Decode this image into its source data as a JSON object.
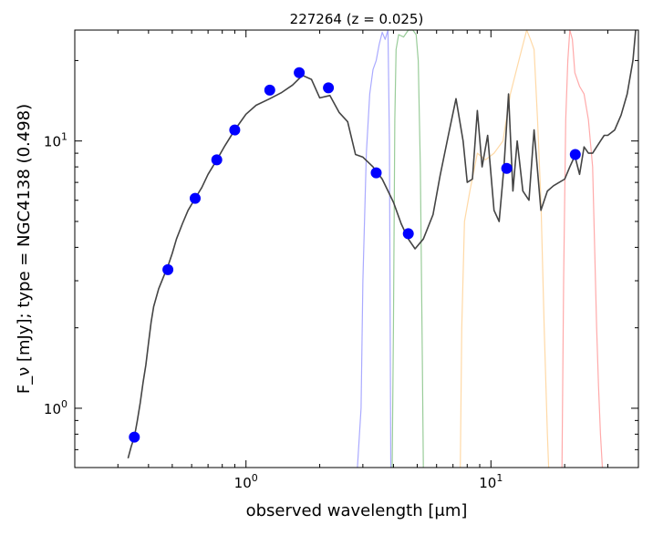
{
  "chart_data": {
    "type": "scatter",
    "title": "227264 (z = 0.025)",
    "xlabel": "observed wavelength [μm]",
    "ylabel": "F_ν [mJy];  type = NGC4138 (0.498)",
    "xscale": "log",
    "yscale": "log",
    "xlim": [
      0.2,
      40
    ],
    "ylim": [
      0.6,
      26
    ],
    "grid": false,
    "x_ticks": [
      {
        "value": 1,
        "label": "10^0"
      },
      {
        "value": 10,
        "label": "10^1"
      }
    ],
    "y_ticks": [
      {
        "value": 1,
        "label": "10^0"
      },
      {
        "value": 10,
        "label": "10^1"
      }
    ],
    "series": [
      {
        "kind": "photometry",
        "color": "#0000ff",
        "x": [
          0.35,
          0.48,
          0.62,
          0.76,
          0.9,
          1.25,
          1.65,
          2.17,
          3.4,
          4.6,
          11.6,
          22.1
        ],
        "y": [
          0.78,
          3.3,
          6.1,
          8.5,
          11.0,
          15.5,
          18.0,
          15.8,
          7.6,
          4.5,
          7.9,
          8.9
        ]
      },
      {
        "kind": "template",
        "color": "#444444",
        "x": [
          0.33,
          0.34,
          0.35,
          0.36,
          0.37,
          0.38,
          0.39,
          0.4,
          0.41,
          0.42,
          0.44,
          0.46,
          0.48,
          0.5,
          0.52,
          0.55,
          0.58,
          0.62,
          0.66,
          0.7,
          0.76,
          0.82,
          0.9,
          1.0,
          1.1,
          1.25,
          1.4,
          1.55,
          1.7,
          1.85,
          2.0,
          2.2,
          2.4,
          2.6,
          2.8,
          3.0,
          3.3,
          3.6,
          4.0,
          4.3,
          4.6,
          4.9,
          5.3,
          5.8,
          6.2,
          6.7,
          7.2,
          7.7,
          8.0,
          8.4,
          8.8,
          9.2,
          9.7,
          10.3,
          10.8,
          11.3,
          11.8,
          12.3,
          12.8,
          13.5,
          14.3,
          15.0,
          16.0,
          17.0,
          18.0,
          19.0,
          20.0,
          21.0,
          22.0,
          23.0,
          24.0,
          25.0,
          26.0,
          27.0,
          28.0,
          29.0,
          30.0,
          32.0,
          34.0,
          36.0,
          38.0,
          39.0
        ],
        "y": [
          0.65,
          0.72,
          0.78,
          0.9,
          1.05,
          1.25,
          1.45,
          1.75,
          2.1,
          2.4,
          2.8,
          3.1,
          3.4,
          3.8,
          4.3,
          4.9,
          5.5,
          6.1,
          6.7,
          7.5,
          8.5,
          9.6,
          11.0,
          12.6,
          13.6,
          14.4,
          15.2,
          16.2,
          17.6,
          17.0,
          14.5,
          14.8,
          12.8,
          11.8,
          8.9,
          8.7,
          8.0,
          7.2,
          5.9,
          4.9,
          4.3,
          3.95,
          4.3,
          5.3,
          7.4,
          10.5,
          14.4,
          10.0,
          7.0,
          7.2,
          13.0,
          8.0,
          10.5,
          5.5,
          5.0,
          8.0,
          15.0,
          6.5,
          10.0,
          6.5,
          6.0,
          11.0,
          5.5,
          6.5,
          6.8,
          7.0,
          7.2,
          8.0,
          8.8,
          7.5,
          9.5,
          9.0,
          9.0,
          9.5,
          10.0,
          10.5,
          10.5,
          11.0,
          12.5,
          15.0,
          20.0,
          26.0
        ]
      },
      {
        "kind": "filter",
        "color": "#aaaaff",
        "x": [
          2.85,
          2.95,
          3.0,
          3.1,
          3.2,
          3.3,
          3.4,
          3.5,
          3.6,
          3.7,
          3.8,
          3.85,
          3.9
        ],
        "y": [
          0.6,
          1.0,
          3.0,
          9.0,
          15.0,
          18.5,
          20.0,
          23.0,
          25.5,
          24.0,
          26.0,
          10.0,
          0.6
        ]
      },
      {
        "kind": "filter",
        "color": "#99cc99",
        "x": [
          3.95,
          4.0,
          4.05,
          4.1,
          4.2,
          4.4,
          4.6,
          4.8,
          4.95,
          5.05,
          5.15,
          5.25,
          5.3
        ],
        "y": [
          0.6,
          2.0,
          12.0,
          22.0,
          25.0,
          24.5,
          26.0,
          26.0,
          25.0,
          20.0,
          8.0,
          1.5,
          0.6
        ]
      },
      {
        "kind": "filter",
        "color": "#ffd9a6",
        "x": [
          7.5,
          7.6,
          7.8,
          8.2,
          8.8,
          9.5,
          10.3,
          11.2,
          12.0,
          13.0,
          14.0,
          14.5,
          15.0,
          15.5,
          16.0,
          16.5,
          17.0,
          17.2
        ],
        "y": [
          0.6,
          2.0,
          5.0,
          6.5,
          9.0,
          8.5,
          9.0,
          10.0,
          15.0,
          20.0,
          26.0,
          24.0,
          22.0,
          12.0,
          6.0,
          2.0,
          0.8,
          0.6
        ]
      },
      {
        "kind": "filter",
        "color": "#ffaaaa",
        "x": [
          19.5,
          19.8,
          20.2,
          20.6,
          21.0,
          21.5,
          22.0,
          23.0,
          24.0,
          25.0,
          26.0,
          26.5,
          27.0,
          27.5,
          28.0,
          28.5
        ],
        "y": [
          0.6,
          3.0,
          12.0,
          20.0,
          26.0,
          24.0,
          18.0,
          16.0,
          15.0,
          12.0,
          8.0,
          4.0,
          2.0,
          1.2,
          0.8,
          0.6
        ]
      }
    ]
  }
}
